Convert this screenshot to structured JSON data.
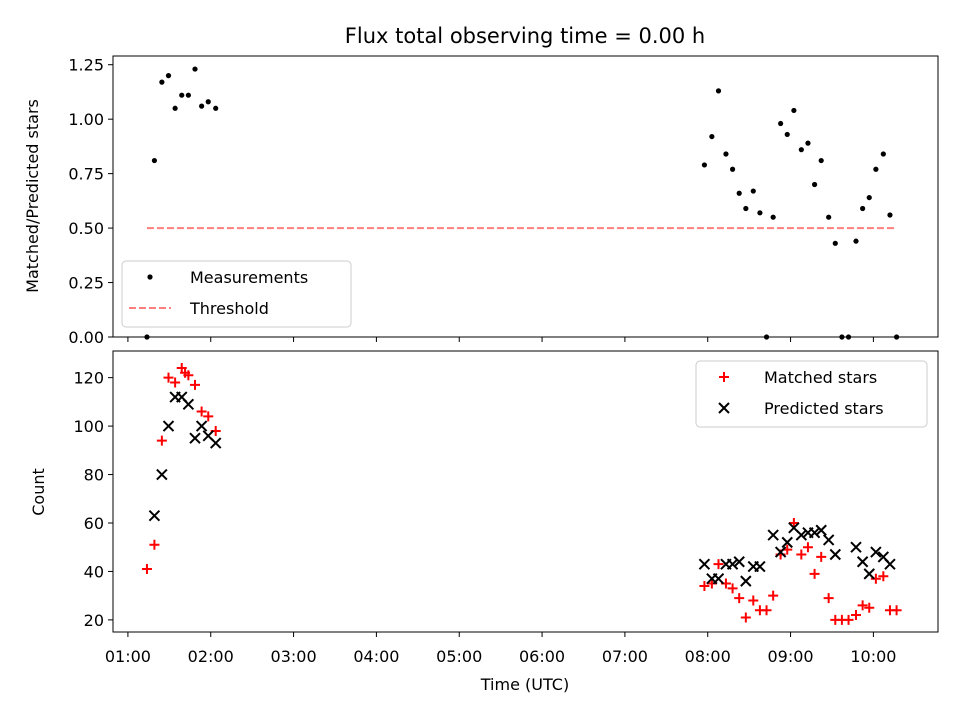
{
  "chart_data": {
    "title": "Flux total observing time = 0.00 h",
    "xlabel": "Time (UTC)",
    "x_tick_labels": [
      "01:00",
      "02:00",
      "03:00",
      "04:00",
      "05:00",
      "06:00",
      "07:00",
      "08:00",
      "09:00",
      "10:00"
    ],
    "x_tick_hours": [
      1,
      2,
      3,
      4,
      5,
      6,
      7,
      8,
      9,
      10
    ],
    "xlim": [
      0.82,
      10.78
    ],
    "panels": [
      {
        "type": "scatter",
        "ylabel": "Matched/Predicted stars",
        "ylim": [
          0,
          1.29
        ],
        "y_ticks": [
          0,
          0.25,
          0.5,
          0.75,
          1.0,
          1.25
        ],
        "y_tick_labels": [
          "0.00",
          "0.25",
          "0.50",
          "0.75",
          "1.00",
          "1.25"
        ],
        "legend_position": "lower-left",
        "series": [
          {
            "name": "Measurements",
            "marker": "dot",
            "color": "#000000",
            "points": [
              [
                1.23,
                0.0
              ],
              [
                1.32,
                0.81
              ],
              [
                1.41,
                1.17
              ],
              [
                1.49,
                1.2
              ],
              [
                1.57,
                1.05
              ],
              [
                1.65,
                1.11
              ],
              [
                1.73,
                1.11
              ],
              [
                1.81,
                1.23
              ],
              [
                1.89,
                1.06
              ],
              [
                1.97,
                1.08
              ],
              [
                2.06,
                1.05
              ],
              [
                7.96,
                0.79
              ],
              [
                8.05,
                0.92
              ],
              [
                8.13,
                1.13
              ],
              [
                8.22,
                0.84
              ],
              [
                8.3,
                0.77
              ],
              [
                8.38,
                0.66
              ],
              [
                8.46,
                0.59
              ],
              [
                8.55,
                0.67
              ],
              [
                8.63,
                0.57
              ],
              [
                8.71,
                0.0
              ],
              [
                8.79,
                0.55
              ],
              [
                8.88,
                0.98
              ],
              [
                8.96,
                0.93
              ],
              [
                9.04,
                1.04
              ],
              [
                9.13,
                0.86
              ],
              [
                9.21,
                0.89
              ],
              [
                9.29,
                0.7
              ],
              [
                9.37,
                0.81
              ],
              [
                9.46,
                0.55
              ],
              [
                9.54,
                0.43
              ],
              [
                9.62,
                0.0
              ],
              [
                9.7,
                0.0
              ],
              [
                9.79,
                0.44
              ],
              [
                9.87,
                0.59
              ],
              [
                9.95,
                0.64
              ],
              [
                10.03,
                0.77
              ],
              [
                10.12,
                0.84
              ],
              [
                10.2,
                0.56
              ],
              [
                10.28,
                0.0
              ]
            ]
          },
          {
            "name": "Threshold",
            "marker": "dashed-line",
            "color": "#ff7f7f",
            "points": [
              [
                1.23,
                0.5
              ],
              [
                10.28,
                0.5
              ]
            ]
          }
        ]
      },
      {
        "type": "scatter",
        "ylabel": "Count",
        "ylim": [
          15,
          131
        ],
        "y_ticks": [
          20,
          40,
          60,
          80,
          100,
          120
        ],
        "y_tick_labels": [
          "20",
          "40",
          "60",
          "80",
          "100",
          "120"
        ],
        "legend_position": "top-right",
        "series": [
          {
            "name": "Matched stars",
            "marker": "plus",
            "color": "#ff0000",
            "points": [
              [
                1.23,
                41
              ],
              [
                1.32,
                51
              ],
              [
                1.41,
                94
              ],
              [
                1.49,
                120
              ],
              [
                1.57,
                118
              ],
              [
                1.65,
                124
              ],
              [
                1.69,
                122
              ],
              [
                1.73,
                121
              ],
              [
                1.81,
                117
              ],
              [
                1.89,
                106
              ],
              [
                1.97,
                104
              ],
              [
                2.06,
                98
              ],
              [
                7.96,
                34
              ],
              [
                8.05,
                35
              ],
              [
                8.13,
                43
              ],
              [
                8.22,
                35
              ],
              [
                8.3,
                33
              ],
              [
                8.38,
                29
              ],
              [
                8.46,
                21
              ],
              [
                8.55,
                28
              ],
              [
                8.63,
                24
              ],
              [
                8.71,
                24
              ],
              [
                8.79,
                30
              ],
              [
                8.88,
                47
              ],
              [
                8.96,
                49
              ],
              [
                9.04,
                60
              ],
              [
                9.13,
                47
              ],
              [
                9.21,
                50
              ],
              [
                9.29,
                39
              ],
              [
                9.37,
                46
              ],
              [
                9.46,
                29
              ],
              [
                9.54,
                20
              ],
              [
                9.62,
                20
              ],
              [
                9.7,
                20
              ],
              [
                9.79,
                22
              ],
              [
                9.87,
                26
              ],
              [
                9.95,
                25
              ],
              [
                10.03,
                37
              ],
              [
                10.12,
                38
              ],
              [
                10.2,
                24
              ],
              [
                10.28,
                24
              ]
            ]
          },
          {
            "name": "Predicted stars",
            "marker": "x",
            "color": "#000000",
            "points": [
              [
                1.32,
                63
              ],
              [
                1.41,
                80
              ],
              [
                1.49,
                100
              ],
              [
                1.57,
                112
              ],
              [
                1.65,
                112
              ],
              [
                1.73,
                109
              ],
              [
                1.81,
                95
              ],
              [
                1.89,
                100
              ],
              [
                1.97,
                96
              ],
              [
                2.06,
                93
              ],
              [
                7.96,
                43
              ],
              [
                8.05,
                37
              ],
              [
                8.13,
                37
              ],
              [
                8.22,
                43
              ],
              [
                8.3,
                43
              ],
              [
                8.38,
                44
              ],
              [
                8.46,
                36
              ],
              [
                8.55,
                42
              ],
              [
                8.63,
                42
              ],
              [
                8.79,
                55
              ],
              [
                8.88,
                48
              ],
              [
                8.96,
                52
              ],
              [
                9.04,
                58
              ],
              [
                9.13,
                55
              ],
              [
                9.21,
                56
              ],
              [
                9.29,
                56
              ],
              [
                9.37,
                57
              ],
              [
                9.46,
                53
              ],
              [
                9.54,
                47
              ],
              [
                9.79,
                50
              ],
              [
                9.87,
                44
              ],
              [
                9.95,
                39
              ],
              [
                10.03,
                48
              ],
              [
                10.12,
                46
              ],
              [
                10.2,
                43
              ]
            ]
          }
        ]
      }
    ]
  }
}
